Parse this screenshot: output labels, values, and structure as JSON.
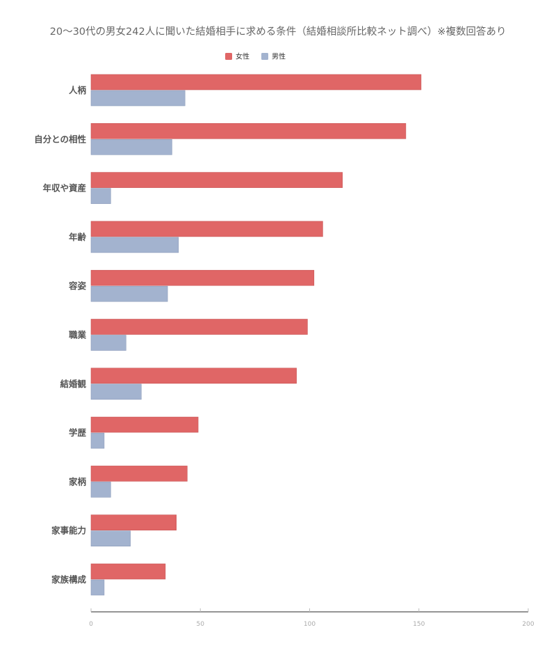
{
  "chart_data": {
    "type": "bar",
    "orientation": "horizontal",
    "title": "20〜30代の男女242人に聞いた結婚相手に求める条件（結婚相談所比較ネット調べ）※複数回答あり",
    "categories": [
      "人柄",
      "自分との相性",
      "年収や資産",
      "年齢",
      "容姿",
      "職業",
      "結婚観",
      "学歴",
      "家柄",
      "家事能力",
      "家族構成"
    ],
    "series": [
      {
        "name": "女性",
        "color": "#e06666",
        "values": [
          151,
          144,
          115,
          106,
          102,
          99,
          94,
          49,
          44,
          39,
          34
        ]
      },
      {
        "name": "男性",
        "color": "#a3b3cf",
        "values": [
          43,
          37,
          9,
          40,
          35,
          16,
          23,
          6,
          9,
          18,
          6
        ]
      }
    ],
    "xlim": [
      0,
      200
    ],
    "xticks": [
      "0",
      "50",
      "100",
      "150",
      "200"
    ],
    "legend_position": "top-center",
    "grid": false
  }
}
